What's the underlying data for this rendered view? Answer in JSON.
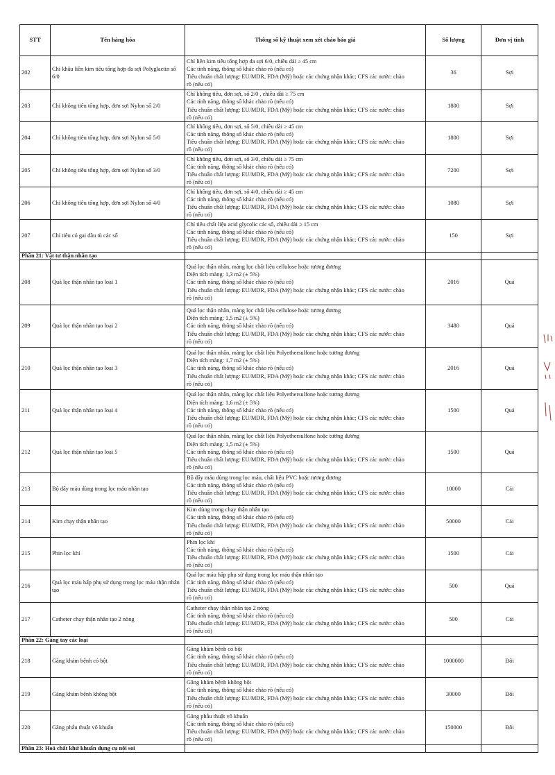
{
  "table": {
    "headers": {
      "stt": "STT",
      "name": "Tên hàng hóa",
      "spec": "Thông số kỹ thuật xem xét chào báo giá",
      "qty": "Số lượng",
      "unit": "Đơn vị tính"
    },
    "rows": [
      {
        "stt": "202",
        "name": "Chỉ khâu liền kim tiêu tổng hợp đa sợi Polyglactin số 6/0",
        "spec": [
          "Chỉ liền kim tiêu tổng hợp đa sợi 6/0, chiều dài ≥ 45 cm",
          "Các tính năng, thông số khác chào rõ (nếu có)",
          "Tiêu chuẩn chất lượng: EU/MDR, FDA (Mỹ) hoặc các chứng nhận khác; CFS các nước: chào",
          "rõ (nếu có)"
        ],
        "qty": "36",
        "unit": "Sợi"
      },
      {
        "stt": "203",
        "name": "Chỉ không tiêu tổng hợp, đơn sợi Nylon số 2/0",
        "spec": [
          "Chỉ không tiêu, đơn sợi, số 2/0 , chiều dài ≥ 75 cm",
          "Các tính năng, thông số khác chào rõ (nếu có)",
          "Tiêu chuẩn chất lượng: EU/MDR, FDA (Mỹ) hoặc các chứng nhận khác; CFS các nước: chào",
          "rõ (nếu có)"
        ],
        "qty": "1800",
        "unit": "Sợi"
      },
      {
        "stt": "204",
        "name": "Chỉ không tiêu tổng hợp, đơn sợi Nylon số 5/0",
        "spec": [
          "Chỉ không tiêu, đơn sợi, số 5/0, chiều dài ≥ 45 cm",
          "Các tính năng, thông số khác chào rõ (nếu có)",
          "Tiêu chuẩn chất lượng: EU/MDR, FDA (Mỹ) hoặc các chứng nhận khác; CFS các nước: chào",
          "rõ (nếu có)"
        ],
        "qty": "1800",
        "unit": "Sợi"
      },
      {
        "stt": "205",
        "name": "Chỉ không tiêu tổng hợp, đơn sợi Nylon số 3/0",
        "spec": [
          "Chỉ không tiêu, đơn sợi, số 3/0, chiều dài ≥ 75 cm",
          "Các tính năng, thông số khác chào rõ (nếu có)",
          "Tiêu chuẩn chất lượng: EU/MDR, FDA (Mỹ) hoặc các chứng nhận khác; CFS các nước: chào",
          "rõ (nếu có)"
        ],
        "qty": "7200",
        "unit": "Sợi"
      },
      {
        "stt": "206",
        "name": "Chỉ không tiêu tổng hợp, đơn sợi Nylon số 4/0",
        "spec": [
          "Chỉ không tiêu, đơn sợi, số 4/0, chiều dài ≥ 45 cm",
          "Các tính năng, thông số khác chào rõ (nếu có)",
          "Tiêu chuẩn chất lượng: EU/MDR, FDA (Mỹ) hoặc các chứng nhận khác; CFS các nước: chào",
          "rõ (nếu có)"
        ],
        "qty": "1080",
        "unit": "Sợi"
      },
      {
        "stt": "207",
        "name": "Chỉ tiêu có gai đầu tù các số",
        "spec": [
          "Chỉ tiêu chất liệu acid glycolic các số, chiều dài ≥ 15 cm",
          "Các tính năng, thông số khác chào rõ (nếu có)",
          "Tiêu chuẩn chất lượng: EU/MDR, FDA (Mỹ) hoặc các chứng nhận khác; CFS các nước: chào",
          "rõ (nếu có)"
        ],
        "qty": "150",
        "unit": "Sợi"
      },
      {
        "section": "Phần 21: Vật tư thận nhân tạo"
      },
      {
        "stt": "208",
        "name": "Quả lọc thận nhân tạo loại 1",
        "spec": [
          "Quả lọc thận nhân, màng lọc chất liệu cellulose hoặc tương đương",
          "Diện tích màng: 1,3 m2 (± 5%)",
          "Các tính năng, thông số khác chào rõ (nếu có)",
          "Tiêu chuẩn chất lượng: EU/MDR, FDA (Mỹ) hoặc các chứng nhận khác; CFS các nước: chào",
          "rõ (nếu có)"
        ],
        "qty": "2016",
        "unit": "Quả"
      },
      {
        "stt": "209",
        "name": "Quả lọc thận nhân tạo loại 2",
        "spec": [
          "Quả lọc thận nhân, màng lọc chất liệu cellulose hoặc tương đương",
          "Diện tích màng: 1,5 m2 (± 5%)",
          "Các tính năng, thông số khác chào rõ (nếu có)",
          "Tiêu chuẩn chất lượng: EU/MDR, FDA (Mỹ) hoặc các chứng nhận khác; CFS các nước: chào",
          "rõ (nếu có)"
        ],
        "qty": "3480",
        "unit": "Quả"
      },
      {
        "stt": "210",
        "name": "Quả lọc thận nhân tạo loại 3",
        "spec": [
          "Quả lọc thận nhân, màng lọc chất liệu Polyethersulfone hoặc tương đương",
          "Diện tích màng: 1,7 m2 (± 5%)",
          "Các tính năng, thông số khác chào rõ (nếu có)",
          "Tiêu chuẩn chất lượng: EU/MDR, FDA (Mỹ) hoặc các chứng nhận khác; CFS các nước: chào",
          "rõ (nếu có)"
        ],
        "qty": "2016",
        "unit": "Quả"
      },
      {
        "stt": "211",
        "name": "Quả lọc thận nhân tạo loại 4",
        "spec": [
          "Quả lọc thận nhân, màng lọc chất liệu Polyethersulfone hoặc tương đương",
          "Diện tích màng: 1,6 m2 (± 5%)",
          "Các tính năng, thông số khác chào rõ (nếu có)",
          "Tiêu chuẩn chất lượng: EU/MDR, FDA (Mỹ) hoặc các chứng nhận khác; CFS các nước: chào",
          "rõ (nếu có)"
        ],
        "qty": "1500",
        "unit": "Quả"
      },
      {
        "stt": "212",
        "name": "Quả lọc thận nhân tạo loại 5",
        "spec": [
          "Quả lọc thận nhân, màng lọc chất liệu Polyethersulfone hoặc tương đương",
          "Diện tích màng: 1,5 m2 (± 5%)",
          "Các tính năng, thông số khác chào rõ (nếu có)",
          "Tiêu chuẩn chất lượng: EU/MDR, FDA (Mỹ) hoặc các chứng nhận khác; CFS các nước: chào",
          "rõ (nếu có)"
        ],
        "qty": "1500",
        "unit": "Quả"
      },
      {
        "stt": "213",
        "name": "Bộ dây máu dùng trong lọc máu nhân tạo",
        "spec": [
          "Bộ dây máu dùng trong lọc máu, chất liệu PVC hoặc tương đương",
          "Các tính năng, thông số khác chào rõ (nếu có)",
          "Tiêu chuẩn chất lượng: EU/MDR, FDA (Mỹ) hoặc các chứng nhận khác; CFS các nước: chào",
          "rõ (nếu có)"
        ],
        "qty": "10000",
        "unit": "Cái"
      },
      {
        "stt": "214",
        "name": "Kim chạy thận nhân tạo",
        "spec": [
          "Kim dùng trong chạy thận nhân tạo",
          "Các tính năng, thông số khác chào rõ (nếu có)",
          "Tiêu chuẩn chất lượng: EU/MDR, FDA (Mỹ) hoặc các chứng nhận khác; CFS các nước: chào",
          "rõ (nếu có)"
        ],
        "qty": "50000",
        "unit": "Cái"
      },
      {
        "stt": "215",
        "name": "Phin lọc khí",
        "spec": [
          "Phin lọc khí",
          "Các tính năng, thông số khác chào rõ (nếu có)",
          "Tiêu chuẩn chất lượng: EU/MDR, FDA (Mỹ) hoặc các chứng nhận khác; CFS các nước: chào",
          "rõ (nếu có)"
        ],
        "qty": "1500",
        "unit": "Cái"
      },
      {
        "stt": "216",
        "name": "Quả lọc máu hấp phụ sử dụng trong lọc máu thận nhân tạo",
        "spec": [
          "Quả lọc máu hấp phụ sử dụng trong lọc máu thận nhân tạo",
          "Các tính năng, thông số khác chào rõ (nếu có)",
          "Tiêu chuẩn chất lượng: EU/MDR, FDA (Mỹ) hoặc các chứng nhận khác; CFS các nước: chào",
          "rõ (nếu có)"
        ],
        "qty": "500",
        "unit": "Quả"
      },
      {
        "stt": "217",
        "name": "Catheter chạy thận nhân tạo 2 nòng",
        "spec": [
          "Catheter chạy thận nhân tạo 2 nòng",
          "Các tính năng, thông số khác chào rõ (nếu có)",
          "Tiêu chuẩn chất lượng: EU/MDR, FDA (Mỹ) hoặc các chứng nhận khác; CFS các nước: chào",
          "rõ (nếu có)"
        ],
        "qty": "500",
        "unit": "Cái"
      },
      {
        "section": "Phần 22: Găng tay các loại"
      },
      {
        "stt": "218",
        "name": "Găng khám bệnh có bột",
        "spec": [
          "Găng khám bệnh có bột",
          "Các tính năng, thông số khác chào rõ (nếu có)",
          "Tiêu chuẩn chất lượng: EU/MDR, FDA (Mỹ) hoặc các chứng nhận khác; CFS các nước: chào",
          "rõ (nếu có)"
        ],
        "qty": "1000000",
        "unit": "Đôi"
      },
      {
        "stt": "219",
        "name": "Găng khám bệnh không bột",
        "spec": [
          "Găng khám bệnh không bột",
          "Các tính năng, thông số khác chào rõ (nếu có)",
          "Tiêu chuẩn chất lượng: EU/MDR, FDA (Mỹ) hoặc các chứng nhận khác; CFS các nước: chào",
          "rõ (nếu có)"
        ],
        "qty": "30000",
        "unit": "Đôi"
      },
      {
        "stt": "220",
        "name": "Găng phẫu thuật vô khuẩn",
        "spec": [
          "Găng phẫu thuật vô khuẩn",
          "Các tính năng, thông số khác chào rõ (nếu có)",
          "Tiêu chuẩn chất lượng: EU/MDR, FDA (Mỹ) hoặc các chứng nhận khác; CFS các nước: chào",
          "rõ (nếu có)"
        ],
        "qty": "150000",
        "unit": "Đôi"
      },
      {
        "section": "Phần 23: Hoá chất khử khuẩn dụng cụ nội soi"
      }
    ]
  }
}
